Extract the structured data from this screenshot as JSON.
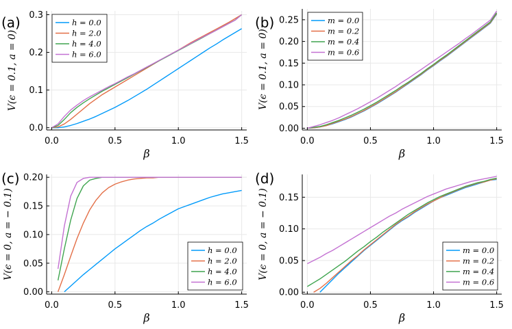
{
  "colors": {
    "c1": "#009AFA",
    "c2": "#E36F47",
    "c3": "#3EA44E",
    "c4": "#C371D2",
    "grid": "#E8E8E8",
    "axis": "#000000"
  },
  "chart_data": [
    {
      "panel_label": "(a)",
      "type": "line",
      "xlabel": "β",
      "ylabel": "V(ϵ = 0.1, a = 0)",
      "xlim": [
        -0.04,
        1.54
      ],
      "ylim": [
        -0.006,
        0.31
      ],
      "xticks": [
        0,
        0.5,
        1.0,
        1.5
      ],
      "xtick_labels": [
        "0.0",
        "0.5",
        "1.0",
        "1.5"
      ],
      "yticks": [
        0,
        0.1,
        0.2,
        0.3
      ],
      "ytick_labels": [
        "0.0",
        "0.1",
        "0.2",
        "0.3"
      ],
      "legend_position": "top-left",
      "x": [
        0.0,
        0.05,
        0.1,
        0.15,
        0.2,
        0.25,
        0.3,
        0.35,
        0.4,
        0.45,
        0.5,
        0.55,
        0.6,
        0.65,
        0.7,
        0.75,
        0.8,
        0.85,
        0.9,
        0.95,
        1.0,
        1.05,
        1.1,
        1.15,
        1.2,
        1.25,
        1.3,
        1.35,
        1.4,
        1.45,
        1.5
      ],
      "series": [
        {
          "name": "h = 0.0",
          "values": [
            0.0,
            0.0,
            0.002,
            0.006,
            0.011,
            0.017,
            0.023,
            0.03,
            0.038,
            0.046,
            0.054,
            0.063,
            0.072,
            0.082,
            0.092,
            0.102,
            0.113,
            0.124,
            0.135,
            0.146,
            0.157,
            0.168,
            0.179,
            0.19,
            0.201,
            0.212,
            0.222,
            0.233,
            0.243,
            0.253,
            0.263
          ]
        },
        {
          "name": "h = 2.0",
          "values": [
            0.0,
            0.002,
            0.01,
            0.022,
            0.036,
            0.05,
            0.064,
            0.076,
            0.088,
            0.098,
            0.108,
            0.118,
            0.128,
            0.138,
            0.148,
            0.158,
            0.168,
            0.178,
            0.188,
            0.197,
            0.206,
            0.216,
            0.226,
            0.235,
            0.244,
            0.253,
            0.262,
            0.271,
            0.28,
            0.29,
            0.3
          ]
        },
        {
          "name": "h = 4.0",
          "values": [
            0.0,
            0.006,
            0.022,
            0.04,
            0.054,
            0.066,
            0.077,
            0.087,
            0.097,
            0.106,
            0.115,
            0.124,
            0.133,
            0.142,
            0.151,
            0.16,
            0.169,
            0.178,
            0.187,
            0.196,
            0.205,
            0.214,
            0.223,
            0.232,
            0.241,
            0.25,
            0.259,
            0.268,
            0.277,
            0.286,
            0.3
          ]
        },
        {
          "name": "h = 6.0",
          "values": [
            0.0,
            0.01,
            0.03,
            0.047,
            0.06,
            0.072,
            0.082,
            0.091,
            0.1,
            0.109,
            0.117,
            0.126,
            0.135,
            0.143,
            0.152,
            0.161,
            0.17,
            0.179,
            0.188,
            0.197,
            0.206,
            0.215,
            0.224,
            0.233,
            0.242,
            0.25,
            0.259,
            0.268,
            0.277,
            0.286,
            0.3
          ]
        }
      ]
    },
    {
      "panel_label": "(b)",
      "type": "line",
      "xlabel": "β",
      "ylabel": "V(ϵ = 0.1, a = 0)",
      "xlim": [
        -0.04,
        1.54
      ],
      "ylim": [
        -0.004,
        0.275
      ],
      "xticks": [
        0,
        0.5,
        1.0,
        1.5
      ],
      "xtick_labels": [
        "0.0",
        "0.5",
        "1.0",
        "1.5"
      ],
      "yticks": [
        0,
        0.05,
        0.1,
        0.15,
        0.2,
        0.25
      ],
      "ytick_labels": [
        "0.00",
        "0.05",
        "0.10",
        "0.15",
        "0.20",
        "0.25"
      ],
      "legend_position": "top-left",
      "x": [
        0.0,
        0.05,
        0.1,
        0.15,
        0.2,
        0.25,
        0.3,
        0.35,
        0.4,
        0.45,
        0.5,
        0.55,
        0.6,
        0.65,
        0.7,
        0.75,
        0.8,
        0.85,
        0.9,
        0.95,
        1.0,
        1.05,
        1.1,
        1.15,
        1.2,
        1.25,
        1.3,
        1.35,
        1.4,
        1.45,
        1.5
      ],
      "series": [
        {
          "name": "m = 0.0",
          "values": [
            0.0,
            0.001,
            0.003,
            0.006,
            0.01,
            0.015,
            0.02,
            0.026,
            0.033,
            0.04,
            0.048,
            0.056,
            0.065,
            0.074,
            0.083,
            0.093,
            0.103,
            0.113,
            0.123,
            0.134,
            0.144,
            0.155,
            0.165,
            0.176,
            0.187,
            0.198,
            0.209,
            0.22,
            0.231,
            0.242,
            0.263
          ]
        },
        {
          "name": "m = 0.2",
          "values": [
            0.0,
            0.001,
            0.003,
            0.006,
            0.011,
            0.016,
            0.021,
            0.027,
            0.034,
            0.041,
            0.049,
            0.057,
            0.066,
            0.075,
            0.084,
            0.094,
            0.104,
            0.114,
            0.124,
            0.135,
            0.145,
            0.156,
            0.166,
            0.177,
            0.188,
            0.199,
            0.21,
            0.221,
            0.232,
            0.243,
            0.264
          ]
        },
        {
          "name": "m = 0.4",
          "values": [
            0.0,
            0.002,
            0.004,
            0.008,
            0.013,
            0.018,
            0.024,
            0.03,
            0.037,
            0.044,
            0.052,
            0.06,
            0.069,
            0.078,
            0.087,
            0.097,
            0.106,
            0.116,
            0.126,
            0.137,
            0.147,
            0.158,
            0.168,
            0.179,
            0.19,
            0.201,
            0.212,
            0.223,
            0.234,
            0.245,
            0.266
          ]
        },
        {
          "name": "m = 0.6",
          "values": [
            0.0,
            0.004,
            0.008,
            0.013,
            0.018,
            0.024,
            0.031,
            0.038,
            0.045,
            0.053,
            0.061,
            0.069,
            0.078,
            0.087,
            0.096,
            0.106,
            0.115,
            0.125,
            0.135,
            0.145,
            0.155,
            0.165,
            0.175,
            0.185,
            0.195,
            0.206,
            0.216,
            0.227,
            0.238,
            0.249,
            0.27
          ]
        }
      ]
    },
    {
      "panel_label": "(c)",
      "type": "line",
      "xlabel": "β",
      "ylabel": "V(ϵ = 0, a = − 0.1)",
      "xlim": [
        -0.04,
        1.54
      ],
      "ylim": [
        -0.004,
        0.205
      ],
      "xticks": [
        0,
        0.5,
        1.0,
        1.5
      ],
      "xtick_labels": [
        "0.0",
        "0.5",
        "1.0",
        "1.5"
      ],
      "yticks": [
        0,
        0.05,
        0.1,
        0.15,
        0.2
      ],
      "ytick_labels": [
        "0.00",
        "0.05",
        "0.10",
        "0.15",
        "0.20"
      ],
      "legend_position": "bottom-right",
      "x": [
        0.0,
        0.05,
        0.1,
        0.15,
        0.2,
        0.25,
        0.3,
        0.35,
        0.4,
        0.45,
        0.5,
        0.55,
        0.6,
        0.65,
        0.7,
        0.75,
        0.8,
        0.85,
        0.9,
        0.95,
        1.0,
        1.05,
        1.1,
        1.15,
        1.2,
        1.25,
        1.3,
        1.35,
        1.4,
        1.45,
        1.5
      ],
      "series": [
        {
          "name": "h = 0.0",
          "values": [
            null,
            null,
            0.0,
            0.01,
            0.02,
            0.03,
            0.039,
            0.048,
            0.057,
            0.066,
            0.075,
            0.083,
            0.091,
            0.099,
            0.107,
            0.114,
            0.12,
            0.127,
            0.133,
            0.139,
            0.145,
            0.149,
            0.153,
            0.157,
            0.161,
            0.165,
            0.168,
            0.171,
            0.173,
            0.175,
            0.177
          ]
        },
        {
          "name": "h = 2.0",
          "values": [
            null,
            0.0,
            0.03,
            0.062,
            0.093,
            0.12,
            0.143,
            0.16,
            0.173,
            0.182,
            0.188,
            0.192,
            0.195,
            0.197,
            0.198,
            0.199,
            0.199,
            0.2,
            0.2,
            0.2,
            0.2,
            0.2,
            0.2,
            0.2,
            0.2,
            0.2,
            0.2,
            0.2,
            0.2,
            0.2,
            0.2
          ]
        },
        {
          "name": "h = 4.0",
          "values": [
            null,
            0.02,
            0.075,
            0.125,
            0.163,
            0.185,
            0.195,
            0.198,
            0.2,
            0.2,
            0.2,
            0.2,
            0.2,
            0.2,
            0.2,
            0.2,
            0.2,
            0.2,
            0.2,
            0.2,
            0.2,
            0.2,
            0.2,
            0.2,
            0.2,
            0.2,
            0.2,
            0.2,
            0.2,
            0.2,
            0.2
          ]
        },
        {
          "name": "h = 6.0",
          "values": [
            null,
            0.04,
            0.115,
            0.167,
            0.191,
            0.198,
            0.2,
            0.2,
            0.2,
            0.2,
            0.2,
            0.2,
            0.2,
            0.2,
            0.2,
            0.2,
            0.2,
            0.2,
            0.2,
            0.2,
            0.2,
            0.2,
            0.2,
            0.2,
            0.2,
            0.2,
            0.2,
            0.2,
            0.2,
            0.2,
            0.2
          ]
        }
      ]
    },
    {
      "panel_label": "(d)",
      "type": "line",
      "xlabel": "β",
      "ylabel": "V(ϵ = 0, a = − 0.1)",
      "xlim": [
        -0.04,
        1.54
      ],
      "ylim": [
        -0.003,
        0.186
      ],
      "xticks": [
        0,
        0.5,
        1.0,
        1.5
      ],
      "xtick_labels": [
        "0.0",
        "0.5",
        "1.0",
        "1.5"
      ],
      "yticks": [
        0,
        0.05,
        0.1,
        0.15
      ],
      "ytick_labels": [
        "0.00",
        "0.05",
        "0.10",
        "0.15"
      ],
      "legend_position": "bottom-right",
      "x": [
        0.0,
        0.05,
        0.1,
        0.15,
        0.2,
        0.25,
        0.3,
        0.35,
        0.4,
        0.45,
        0.5,
        0.55,
        0.6,
        0.65,
        0.7,
        0.75,
        0.8,
        0.85,
        0.9,
        0.95,
        1.0,
        1.05,
        1.1,
        1.15,
        1.2,
        1.25,
        1.3,
        1.35,
        1.4,
        1.45,
        1.5
      ],
      "series": [
        {
          "name": "m = 0.0",
          "values": [
            null,
            null,
            0.0,
            0.01,
            0.02,
            0.03,
            0.039,
            0.048,
            0.057,
            0.066,
            0.074,
            0.082,
            0.09,
            0.098,
            0.106,
            0.113,
            0.119,
            0.126,
            0.132,
            0.138,
            0.144,
            0.149,
            0.153,
            0.157,
            0.161,
            0.165,
            0.168,
            0.171,
            0.174,
            0.177,
            0.178
          ]
        },
        {
          "name": "m = 0.2",
          "values": [
            null,
            0.0,
            0.006,
            0.014,
            0.023,
            0.032,
            0.041,
            0.05,
            0.058,
            0.067,
            0.075,
            0.083,
            0.091,
            0.099,
            0.107,
            0.114,
            0.12,
            0.127,
            0.133,
            0.139,
            0.144,
            0.149,
            0.154,
            0.158,
            0.162,
            0.166,
            0.169,
            0.172,
            0.174,
            0.177,
            0.179
          ]
        },
        {
          "name": "m = 0.4",
          "values": [
            0.009,
            0.015,
            0.021,
            0.028,
            0.035,
            0.042,
            0.049,
            0.057,
            0.065,
            0.072,
            0.08,
            0.087,
            0.095,
            0.102,
            0.109,
            0.116,
            0.123,
            0.129,
            0.135,
            0.141,
            0.146,
            0.151,
            0.155,
            0.159,
            0.163,
            0.167,
            0.17,
            0.173,
            0.175,
            0.178,
            0.18
          ]
        },
        {
          "name": "m = 0.6",
          "values": [
            0.045,
            0.05,
            0.055,
            0.061,
            0.066,
            0.072,
            0.078,
            0.084,
            0.09,
            0.096,
            0.102,
            0.108,
            0.114,
            0.12,
            0.125,
            0.131,
            0.136,
            0.141,
            0.146,
            0.151,
            0.155,
            0.159,
            0.163,
            0.166,
            0.169,
            0.172,
            0.175,
            0.177,
            0.179,
            0.181,
            0.183
          ]
        }
      ]
    }
  ]
}
